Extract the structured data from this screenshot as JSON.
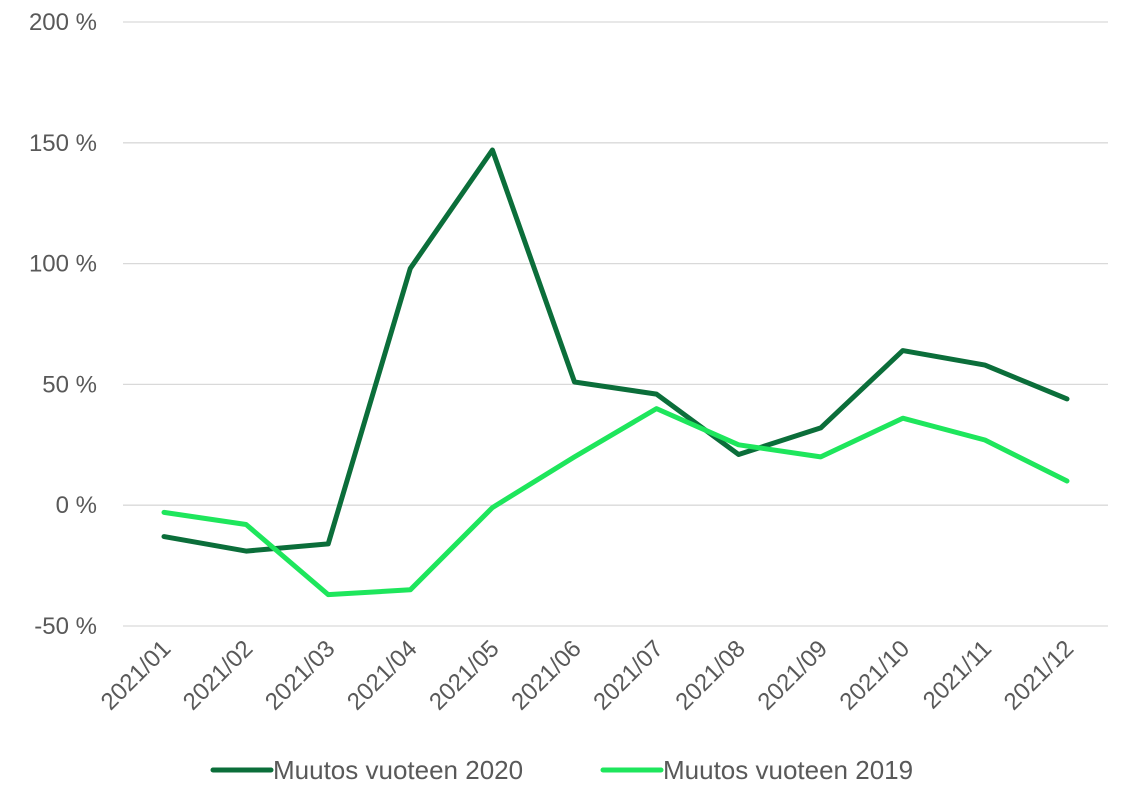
{
  "chart_data": {
    "type": "line",
    "title": "",
    "xlabel": "",
    "ylabel": "",
    "categories": [
      "2021/01",
      "2021/02",
      "2021/03",
      "2021/04",
      "2021/05",
      "2021/06",
      "2021/07",
      "2021/08",
      "2021/09",
      "2021/10",
      "2021/11",
      "2021/12"
    ],
    "series": [
      {
        "name": "Muutos vuoteen 2020",
        "color": "#0b6e3a",
        "values": [
          -13,
          -19,
          -16,
          98,
          147,
          51,
          46,
          21,
          32,
          64,
          58,
          44
        ]
      },
      {
        "name": "Muutos vuoteen 2019",
        "color": "#1ee65c",
        "values": [
          -3,
          -8,
          -37,
          -35,
          -1,
          20,
          40,
          25,
          20,
          36,
          27,
          10
        ]
      }
    ],
    "ylim": [
      -50,
      200
    ],
    "yticks": [
      -50,
      0,
      50,
      100,
      150,
      200
    ],
    "ytick_labels": [
      "-50 %",
      "0 %",
      "50 %",
      "100 %",
      "150 %",
      "200 %"
    ],
    "grid": true,
    "legend_position": "bottom"
  }
}
